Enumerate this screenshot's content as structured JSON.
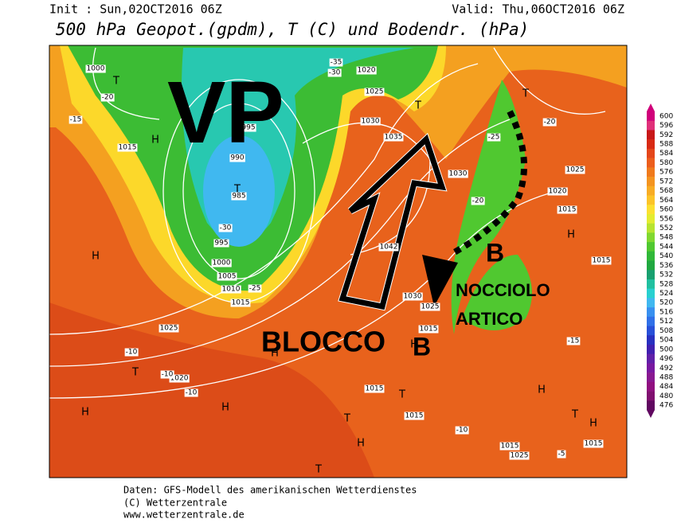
{
  "header": {
    "init": "Init : Sun,02OCT2016 06Z",
    "valid": "Valid: Thu,06OCT2016 06Z",
    "title": "500 hPa Geopot.(gpdm), T (C) und Bodendr. (hPa)"
  },
  "colorbar": {
    "levels": [
      600,
      596,
      592,
      588,
      584,
      580,
      576,
      572,
      568,
      564,
      560,
      556,
      552,
      548,
      544,
      540,
      536,
      532,
      528,
      524,
      520,
      516,
      512,
      508,
      504,
      500,
      496,
      492,
      488,
      484,
      480,
      476
    ],
    "colors": [
      "#d0007a",
      "#e0307a",
      "#c81818",
      "#d82a14",
      "#e4461a",
      "#ec5e1c",
      "#f07a1c",
      "#f49420",
      "#f8ac24",
      "#fcc428",
      "#fce030",
      "#e4ec30",
      "#b8e430",
      "#80d830",
      "#50c830",
      "#30b838",
      "#20a840",
      "#18a070",
      "#20c0a0",
      "#28d0d0",
      "#40b8f0",
      "#3890f0",
      "#3070e8",
      "#2850d8",
      "#2830c0",
      "#4020b0",
      "#6020a8",
      "#7818a0",
      "#881890",
      "#901080",
      "#801070",
      "#600860"
    ]
  },
  "annotations": {
    "vp": "VP",
    "blocco": "BLOCCO",
    "b1": "B",
    "b2": "B",
    "nocciolo": "NOCCIOLO",
    "artico": "ARTICO"
  },
  "labels": [
    "1000",
    "995",
    "990",
    "985",
    "995",
    "1000",
    "1005",
    "1010",
    "1015",
    "1015",
    "1025",
    "1020",
    "1030",
    "1035",
    "1025",
    "1030",
    "1042",
    "1025",
    "1015",
    "1030",
    "1025",
    "1020",
    "1015",
    "1015",
    "1020",
    "1015",
    "1015",
    "1015",
    "1015",
    "1025",
    "-20",
    "-15",
    "-30",
    "-25",
    "-35",
    "-30",
    "-20",
    "-25",
    "-20",
    "-10",
    "-10",
    "-15",
    "-10",
    "-10",
    "-5"
  ],
  "markers": [
    "H",
    "H",
    "T",
    "T",
    "H",
    "H",
    "T",
    "T",
    "H",
    "T",
    "H",
    "T",
    "H",
    "H",
    "T",
    "T",
    "H",
    "H",
    "T"
  ],
  "footer": {
    "line1": "Daten: GFS-Modell des amerikanischen Wetterdienstes",
    "line2": "(C) Wetterzentrale",
    "line3": "www.wetterzentrale.de"
  }
}
